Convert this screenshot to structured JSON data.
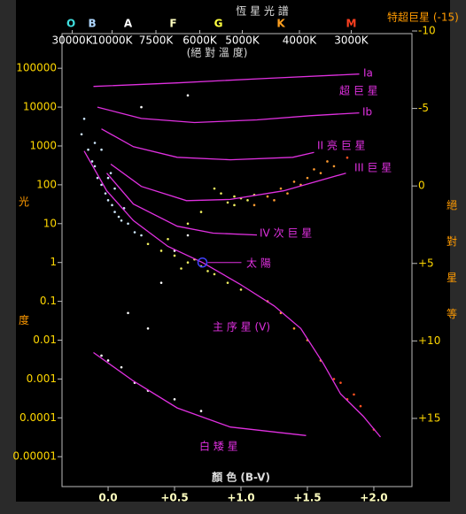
{
  "chart_data": {
    "type": "scatter",
    "title": "恆 星 光 譜",
    "subtitle": "(絕 對 溫 度)",
    "x_label": "顏 色 (B-V)",
    "y_label": "光度",
    "y2_label": "絕對星等",
    "y_scale": "log",
    "xlim": [
      -0.347,
      2.287
    ],
    "ylim": [
      1.7e-06,
      780000
    ],
    "y2lim": [
      19.4,
      -9.83
    ],
    "xticks": [
      {
        "value": 0,
        "label": "0.0"
      },
      {
        "value": 0.5,
        "label": "+0.5"
      },
      {
        "value": 1,
        "label": "+1.0"
      },
      {
        "value": 1.5,
        "label": "+1.5"
      },
      {
        "value": 2,
        "label": "+2.0"
      }
    ],
    "yticks": [
      100000,
      10000,
      1000,
      100,
      10,
      1,
      0.1,
      0.01,
      0.001,
      0.0001,
      1e-05
    ],
    "y2ticks": [
      -10,
      -5,
      0,
      {
        "value": 5,
        "label": "+5"
      },
      {
        "value": 10,
        "label": "+10"
      },
      {
        "value": 15,
        "label": "+15"
      }
    ],
    "top_ticks": [
      {
        "value": -0.27,
        "label": "30000K"
      },
      {
        "value": 0.03,
        "label": "10000K"
      },
      {
        "value": 0.36,
        "label": "7500K"
      },
      {
        "value": 0.69,
        "label": "6000K"
      },
      {
        "value": 1.01,
        "label": "5000K"
      },
      {
        "value": 1.44,
        "label": "4000K"
      },
      {
        "value": 1.83,
        "label": "3000K"
      }
    ],
    "spectral_classes": [
      {
        "value": -0.28,
        "label": "O",
        "color": "#40e0e0"
      },
      {
        "value": -0.12,
        "label": "B",
        "color": "#b0d8ff"
      },
      {
        "value": 0.15,
        "label": "A",
        "color": "#ffffff"
      },
      {
        "value": 0.49,
        "label": "F",
        "color": "#ffffc0"
      },
      {
        "value": 0.83,
        "label": "G",
        "color": "#ffff40"
      },
      {
        "value": 1.3,
        "label": "K",
        "color": "#ffa020"
      },
      {
        "value": 1.83,
        "label": "M",
        "color": "#ff4020"
      }
    ],
    "annotations": [
      "超 巨 星",
      "特超巨星 (-15)"
    ],
    "series": [
      {
        "type": "scatter",
        "color": "#cfe8ff",
        "x": [
          -0.2,
          -0.15,
          -0.12,
          -0.1,
          -0.08,
          -0.05,
          -0.02,
          0,
          0.03,
          0.05,
          0.08,
          0.1,
          0.15,
          -0.18,
          -0.1,
          0,
          0.05,
          0.12,
          0.2,
          0.25,
          -0.05,
          0.02
        ],
        "values": [
          2000,
          800,
          400,
          300,
          150,
          100,
          60,
          40,
          30,
          20,
          15,
          12,
          10,
          5000,
          1200,
          150,
          80,
          25,
          6,
          5,
          800,
          200
        ]
      },
      {
        "type": "scatter",
        "color": "#ffffff",
        "x": [
          0,
          0.1,
          0.2,
          0.3,
          0.5,
          0.15,
          0.3,
          0.4,
          0.5,
          0.6,
          -0.05,
          0.7,
          0.25,
          0.6
        ],
        "values": [
          0.003,
          0.002,
          0.0008,
          0.0005,
          0.0003,
          0.05,
          0.02,
          0.3,
          2,
          5,
          0.004,
          0.00015,
          10000,
          20000
        ]
      },
      {
        "type": "scatter",
        "color": "#f0f060",
        "x": [
          0.3,
          0.4,
          0.5,
          0.6,
          0.7,
          0.8,
          0.65,
          0.9,
          0.55,
          0.45,
          0.85,
          0.95,
          1.0,
          0.9,
          1.05,
          0.8,
          0.7,
          0.6,
          0.75,
          1.0,
          0.95,
          1.1
        ],
        "values": [
          3,
          2,
          1.5,
          1,
          0.8,
          0.5,
          1.2,
          0.3,
          0.7,
          4,
          60,
          50,
          45,
          35,
          40,
          80,
          20,
          10,
          0.6,
          0.2,
          30,
          55
        ]
      },
      {
        "type": "scatter",
        "color": "#ff9a30",
        "x": [
          1.1,
          1.2,
          1.3,
          1.4,
          1.5,
          1.6,
          1.7,
          1.45,
          1.55,
          1.35,
          1.2,
          1.3,
          1.4,
          1.5,
          1.6,
          1.25,
          1.65
        ],
        "values": [
          30,
          50,
          80,
          120,
          150,
          200,
          300,
          100,
          250,
          60,
          0.1,
          0.05,
          0.02,
          0.01,
          0.003,
          40,
          400
        ]
      },
      {
        "type": "scatter",
        "color": "#ff5020",
        "x": [
          1.7,
          1.8,
          1.9,
          2.0,
          1.8,
          1.75,
          1.85
        ],
        "values": [
          0.001,
          0.0003,
          0.0002,
          5e-05,
          500,
          0.0008,
          0.0004
        ]
      },
      {
        "type": "line",
        "name": "Ia",
        "color": "#e030e0",
        "x": [
          -0.11,
          0.52,
          1.19,
          1.89
        ],
        "values": [
          34000,
          42000,
          55000,
          71000
        ]
      },
      {
        "type": "line",
        "name": "Ib",
        "color": "#e030e0",
        "x": [
          -0.08,
          0.25,
          0.65,
          1.12,
          1.52,
          1.89
        ],
        "values": [
          10000,
          5100,
          4000,
          4700,
          6000,
          7100
        ]
      },
      {
        "type": "line",
        "name": "II 亮 巨 星",
        "color": "#e030e0",
        "x": [
          -0.05,
          0.19,
          0.52,
          0.92,
          1.39,
          1.55
        ],
        "values": [
          2750,
          960,
          510,
          440,
          510,
          680
        ]
      },
      {
        "type": "line",
        "name": "III 巨 星",
        "color": "#e030e0",
        "x": [
          0.02,
          0.25,
          0.59,
          0.92,
          1.32,
          1.79
        ],
        "values": [
          340,
          91,
          39,
          42,
          70,
          200
        ]
      },
      {
        "type": "line",
        "name": "IV 次 巨 星",
        "color": "#e030e0",
        "x": [
          -0.01,
          0.19,
          0.52,
          0.79,
          1.12
        ],
        "values": [
          200,
          32,
          8.6,
          5.7,
          5.1
        ]
      },
      {
        "type": "line",
        "name": "主 序 星 (V)",
        "color": "#e030e0",
        "x": [
          -0.18,
          -0.01,
          0.19,
          0.45,
          0.71,
          0.99,
          1.25,
          1.45,
          1.62,
          1.75,
          1.92,
          2.05
        ],
        "values": [
          740,
          70,
          12,
          2.6,
          1,
          0.28,
          0.076,
          0.02,
          0.0025,
          0.00041,
          0.00011,
          3.2e-05
        ]
      },
      {
        "type": "line",
        "name": "白 矮 星",
        "color": "#e030e0",
        "x": [
          -0.11,
          0.19,
          0.52,
          0.92,
          1.49
        ],
        "values": [
          0.0048,
          0.00089,
          0.00018,
          5.8e-05,
          3.5e-05
        ]
      },
      {
        "type": "point",
        "name": "太 陽",
        "color": "#4040ff",
        "x": [
          0.71
        ],
        "values": [
          1
        ]
      }
    ]
  }
}
